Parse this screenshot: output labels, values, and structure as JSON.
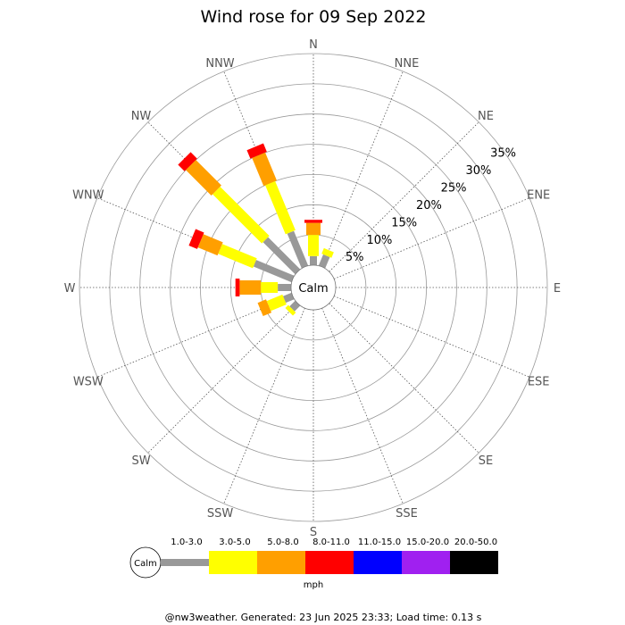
{
  "chart_data": {
    "type": "wind-rose",
    "title": "Wind rose for 09 Sep 2022",
    "directions": [
      "N",
      "NNE",
      "NE",
      "ENE",
      "E",
      "ESE",
      "SE",
      "SSE",
      "S",
      "SSW",
      "SW",
      "WSW",
      "W",
      "WNW",
      "NW",
      "NNW"
    ],
    "radial_ticks": [
      "5%",
      "10%",
      "15%",
      "20%",
      "25%",
      "30%",
      "35%"
    ],
    "radial_values": [
      5,
      10,
      15,
      20,
      25,
      30,
      35
    ],
    "r_max": 35,
    "calm_label": "Calm",
    "speed_unit": "mph",
    "speed_bins": [
      {
        "label": "1.0-3.0",
        "color": "#999999"
      },
      {
        "label": "3.0-5.0",
        "color": "#ffff00"
      },
      {
        "label": "5.0-8.0",
        "color": "#ff9f00"
      },
      {
        "label": "8.0-11.0",
        "color": "#ff0000"
      },
      {
        "label": "11.0-15.0",
        "color": "#0000ff"
      },
      {
        "label": "15.0-20.0",
        "color": "#a020f0"
      },
      {
        "label": "20.0-50.0",
        "color": "#000000"
      }
    ],
    "cumulative_percent_by_direction": {
      "N": [
        1.5,
        5.0,
        7.0,
        7.5
      ],
      "NNE": [
        2.0,
        3.0,
        3.0,
        3.0
      ],
      "W": [
        2.2,
        5.0,
        8.5,
        9.2
      ],
      "WNW": [
        6.8,
        13.0,
        16.5,
        18.0
      ],
      "NW": [
        7.5,
        19.0,
        25.0,
        26.5
      ],
      "NNW": [
        6.2,
        15.0,
        20.0,
        21.5
      ],
      "WSW": [
        1.5,
        4.3,
        5.8,
        5.8
      ],
      "SW": [
        1.3,
        2.0,
        2.0,
        2.0
      ]
    }
  },
  "footer": "@nw3weather. Generated: 23 Jun 2025 23:33; Load time: 0.13 s"
}
